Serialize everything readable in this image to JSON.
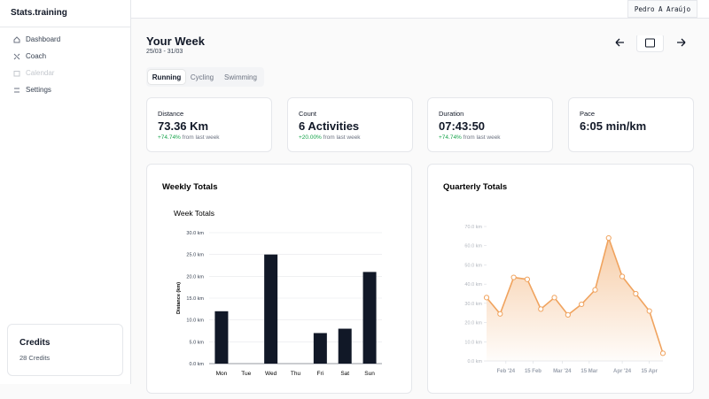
{
  "sidebar": {
    "brand": "Stats.training",
    "nav": [
      "Dashboard",
      "Coach",
      "Calendar",
      "Settings"
    ],
    "credits": {
      "title": "Credits",
      "text": "28 Credits"
    }
  },
  "header": {
    "user": "Pedro A Araújo",
    "title": "Your Week",
    "range": "25/03 - 31/03"
  },
  "tabs": [
    "Running",
    "Cycling",
    "Swimming"
  ],
  "stats": [
    {
      "label": "Distance",
      "value": "73.36 Km",
      "change": "+74.74%",
      "note": "from last week"
    },
    {
      "label": "Count",
      "value": "6 Activities",
      "change": "+20.00%",
      "note": "from last week"
    },
    {
      "label": "Duration",
      "value": "07:43:50",
      "change": "+74.74%",
      "note": "from last week"
    },
    {
      "label": "Pace",
      "value": "6:05 min/km"
    }
  ],
  "chart_data": [
    {
      "type": "bar",
      "card_title": "Weekly Totals",
      "title": "Week Totals",
      "ylabel": "Distance (km)",
      "color": "#111827",
      "grid": true,
      "categories": [
        "Mon",
        "Tue",
        "Wed",
        "Thu",
        "Fri",
        "Sat",
        "Sun"
      ],
      "values": [
        12,
        0,
        25,
        0,
        7,
        8,
        21
      ],
      "ylim": [
        0,
        30
      ],
      "yticks": [
        {
          "value": 0,
          "label": "0.0 km"
        },
        {
          "value": 5,
          "label": "5.0 km"
        },
        {
          "value": 10,
          "label": "10.0 km"
        },
        {
          "value": 15,
          "label": "15.0 km"
        },
        {
          "value": 20,
          "label": "20.0 km"
        },
        {
          "value": 25,
          "label": "25.0 km"
        },
        {
          "value": 30,
          "label": "30.0 km"
        }
      ]
    },
    {
      "type": "area",
      "card_title": "Quarterly Totals",
      "color": "#f0a35e",
      "grid": false,
      "x": [
        "2024-01-22",
        "2024-01-29",
        "2024-02-05",
        "2024-02-12",
        "2024-02-19",
        "2024-02-26",
        "2024-03-04",
        "2024-03-11",
        "2024-03-18",
        "2024-03-25",
        "2024-04-01",
        "2024-04-08",
        "2024-04-15",
        "2024-04-22"
      ],
      "values": [
        33,
        24.5,
        43.5,
        42.5,
        27,
        33,
        24,
        29.5,
        37,
        64,
        44,
        35,
        26,
        4
      ],
      "xlim": [
        "2024-01-22",
        "2024-04-22"
      ],
      "xticks": [
        {
          "value": "2024-02-01",
          "label": "Feb '24"
        },
        {
          "value": "2024-02-15",
          "label": "15 Feb"
        },
        {
          "value": "2024-03-01",
          "label": "Mar '24"
        },
        {
          "value": "2024-03-15",
          "label": "15 Mar"
        },
        {
          "value": "2024-04-01",
          "label": "Apr '24"
        },
        {
          "value": "2024-04-15",
          "label": "15 Apr"
        }
      ],
      "ylim": [
        0,
        70
      ],
      "yticks": [
        {
          "value": 0,
          "label": "0.0 km"
        },
        {
          "value": 10,
          "label": "10.0 km"
        },
        {
          "value": 20,
          "label": "20.0 km"
        },
        {
          "value": 30,
          "label": "30.0 km"
        },
        {
          "value": 40,
          "label": "40.0 km"
        },
        {
          "value": 50,
          "label": "50.0 km"
        },
        {
          "value": 60,
          "label": "60.0 km"
        },
        {
          "value": 70,
          "label": "70.0 km"
        }
      ]
    }
  ]
}
